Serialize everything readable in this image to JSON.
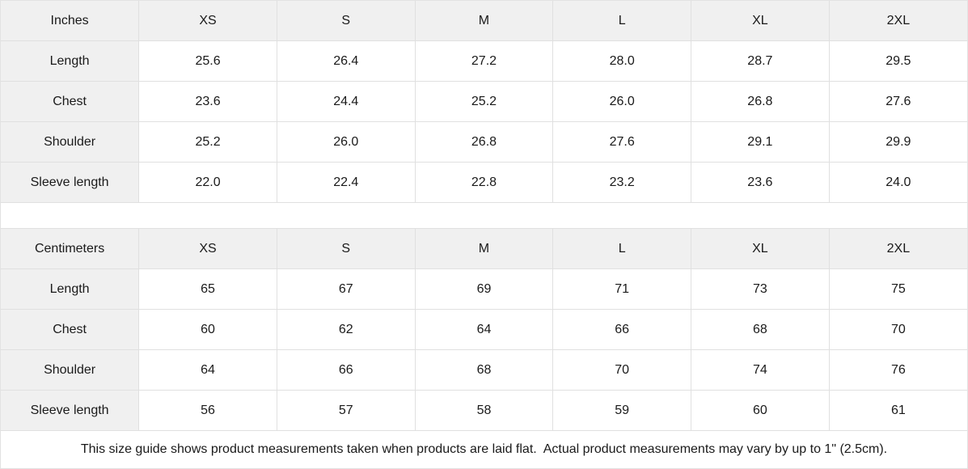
{
  "colors": {
    "header_bg": "#f0f0f0",
    "border": "#e0e0e0",
    "text": "#1a1a1a",
    "background": "#ffffff"
  },
  "inches": {
    "unit": "Inches",
    "columns": [
      "XS",
      "S",
      "M",
      "L",
      "XL",
      "2XL"
    ],
    "rows": [
      {
        "label": "Length",
        "values": [
          "25.6",
          "26.4",
          "27.2",
          "28.0",
          "28.7",
          "29.5"
        ]
      },
      {
        "label": "Chest",
        "values": [
          "23.6",
          "24.4",
          "25.2",
          "26.0",
          "26.8",
          "27.6"
        ]
      },
      {
        "label": "Shoulder",
        "values": [
          "25.2",
          "26.0",
          "26.8",
          "27.6",
          "29.1",
          "29.9"
        ]
      },
      {
        "label": "Sleeve length",
        "values": [
          "22.0",
          "22.4",
          "22.8",
          "23.2",
          "23.6",
          "24.0"
        ]
      }
    ]
  },
  "centimeters": {
    "unit": "Centimeters",
    "columns": [
      "XS",
      "S",
      "M",
      "L",
      "XL",
      "2XL"
    ],
    "rows": [
      {
        "label": "Length",
        "values": [
          "65",
          "67",
          "69",
          "71",
          "73",
          "75"
        ]
      },
      {
        "label": "Chest",
        "values": [
          "60",
          "62",
          "64",
          "66",
          "68",
          "70"
        ]
      },
      {
        "label": "Shoulder",
        "values": [
          "64",
          "66",
          "68",
          "70",
          "74",
          "76"
        ]
      },
      {
        "label": "Sleeve length",
        "values": [
          "56",
          "57",
          "58",
          "59",
          "60",
          "61"
        ]
      }
    ]
  },
  "footer": {
    "note": "This size guide shows product measurements taken when products are laid flat.  Actual product measurements may vary by up to 1\" (2.5cm)."
  }
}
